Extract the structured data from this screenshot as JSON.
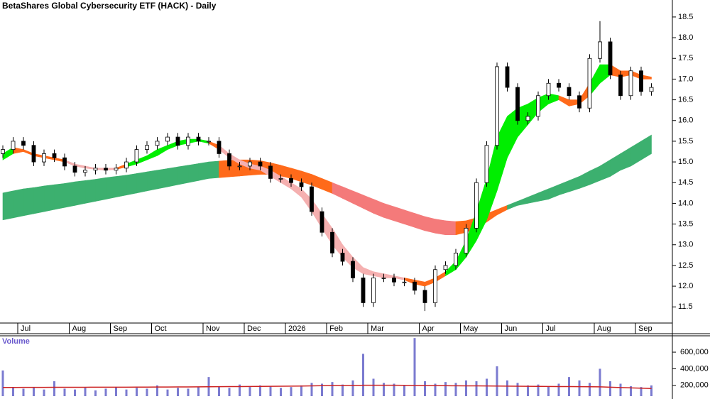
{
  "chart_data": [
    {
      "type": "candlestick",
      "title": "BetaShares Global Cybersecurity ETF (HACK) - Daily",
      "categories": [
        null,
        null,
        "Jul",
        null,
        null,
        null,
        null,
        "Aug",
        null,
        null,
        null,
        "Sep",
        null,
        null,
        null,
        "Oct",
        null,
        null,
        null,
        null,
        "Nov",
        null,
        null,
        null,
        "Dec",
        null,
        null,
        null,
        "2026",
        null,
        null,
        null,
        "Feb",
        null,
        null,
        null,
        "Mar",
        null,
        null,
        null,
        null,
        "Apr",
        null,
        null,
        null,
        "May",
        null,
        null,
        null,
        "Jun",
        null,
        null,
        null,
        "Jul",
        null,
        null,
        null,
        null,
        "Aug",
        null,
        null,
        null,
        "Sep",
        null
      ],
      "open": [
        15.2,
        15.3,
        15.5,
        15.4,
        15.0,
        15.2,
        15.1,
        14.9,
        14.75,
        14.8,
        14.85,
        14.8,
        14.85,
        15.0,
        15.3,
        15.4,
        15.5,
        15.6,
        15.4,
        15.6,
        15.5,
        15.5,
        15.2,
        14.9,
        14.9,
        15.0,
        14.9,
        14.6,
        14.6,
        14.5,
        14.4,
        13.8,
        13.3,
        12.8,
        12.6,
        12.2,
        11.6,
        12.2,
        12.2,
        12.1,
        12.1,
        11.9,
        11.6,
        12.4,
        12.5,
        12.8,
        13.4,
        14.5,
        15.4,
        17.3,
        16.8,
        16.0,
        16.1,
        16.6,
        16.9,
        16.8,
        16.6,
        16.3,
        17.5,
        17.9,
        17.1,
        16.6,
        17.2,
        16.7
      ],
      "high": [
        15.4,
        15.6,
        15.6,
        15.5,
        15.3,
        15.3,
        15.2,
        15.0,
        14.9,
        14.95,
        14.95,
        14.95,
        15.1,
        15.4,
        15.5,
        15.6,
        15.7,
        15.7,
        15.7,
        15.7,
        15.6,
        15.6,
        15.3,
        15.0,
        15.1,
        15.1,
        15.0,
        14.7,
        14.7,
        14.6,
        14.5,
        13.9,
        13.4,
        12.9,
        12.7,
        12.3,
        12.3,
        12.3,
        12.3,
        12.2,
        12.2,
        12.0,
        12.5,
        12.6,
        12.9,
        13.5,
        14.6,
        15.5,
        17.4,
        17.4,
        16.9,
        16.2,
        16.7,
        17.0,
        17.0,
        16.9,
        16.7,
        17.6,
        18.4,
        18.0,
        17.2,
        17.3,
        17.3,
        16.9
      ],
      "low": [
        15.1,
        15.2,
        15.3,
        14.9,
        14.9,
        15.0,
        14.8,
        14.65,
        14.65,
        14.7,
        14.7,
        14.7,
        14.75,
        14.9,
        15.2,
        15.3,
        15.4,
        15.3,
        15.3,
        15.4,
        15.4,
        15.1,
        14.8,
        14.8,
        14.8,
        14.8,
        14.5,
        14.5,
        14.4,
        14.3,
        13.7,
        13.2,
        12.7,
        12.5,
        12.1,
        11.5,
        11.5,
        12.1,
        12.0,
        12.0,
        11.8,
        11.4,
        11.5,
        12.3,
        12.4,
        12.7,
        13.3,
        14.4,
        15.3,
        16.7,
        15.9,
        15.9,
        16.0,
        16.5,
        16.7,
        16.5,
        16.2,
        16.2,
        17.4,
        17.0,
        16.5,
        16.5,
        16.6,
        16.6
      ],
      "close": [
        15.3,
        15.5,
        15.4,
        15.0,
        15.2,
        15.1,
        14.9,
        14.75,
        14.8,
        14.85,
        14.8,
        14.85,
        15.0,
        15.3,
        15.4,
        15.5,
        15.6,
        15.4,
        15.6,
        15.5,
        15.5,
        15.2,
        14.9,
        14.9,
        15.0,
        14.9,
        14.6,
        14.6,
        14.5,
        14.4,
        13.8,
        13.3,
        12.8,
        12.6,
        12.2,
        11.6,
        12.2,
        12.2,
        12.1,
        12.1,
        11.9,
        11.6,
        12.4,
        12.5,
        12.8,
        13.4,
        14.5,
        15.4,
        17.3,
        16.8,
        16.0,
        16.1,
        16.6,
        16.9,
        16.8,
        16.6,
        16.3,
        17.5,
        17.9,
        17.1,
        16.6,
        17.2,
        16.7,
        16.8
      ],
      "up_color": "#ffffff",
      "down_color": "#000000",
      "bands": [
        {
          "upper": [
            14.25,
            14.3,
            14.35,
            14.38,
            14.42,
            14.45,
            14.48,
            14.52,
            14.55,
            14.58,
            14.62,
            14.65,
            14.68,
            14.72,
            14.76,
            14.8,
            14.84,
            14.88,
            14.92,
            14.96,
            15.0,
            15.02,
            15.04,
            15.05,
            15.05,
            15.03,
            14.98,
            14.92,
            14.85,
            14.78,
            14.7,
            14.6,
            14.5,
            14.4,
            14.3,
            14.2,
            14.1,
            14.0,
            13.92,
            13.84,
            13.76,
            13.68,
            13.62,
            13.58,
            13.56,
            13.58,
            13.65,
            13.75,
            13.85,
            13.95,
            14.05,
            14.15,
            14.25,
            14.35,
            14.45,
            14.55,
            14.65,
            14.78,
            14.9,
            15.05,
            15.2,
            15.35,
            15.5,
            15.65
          ],
          "lower": [
            13.6,
            13.65,
            13.7,
            13.75,
            13.8,
            13.85,
            13.9,
            13.95,
            14.0,
            14.05,
            14.1,
            14.15,
            14.2,
            14.25,
            14.3,
            14.35,
            14.4,
            14.45,
            14.5,
            14.55,
            14.6,
            14.62,
            14.64,
            14.66,
            14.68,
            14.7,
            14.7,
            14.66,
            14.6,
            14.52,
            14.44,
            14.34,
            14.24,
            14.12,
            14.0,
            13.88,
            13.76,
            13.66,
            13.58,
            13.5,
            13.42,
            13.34,
            13.28,
            13.24,
            13.24,
            13.3,
            13.4,
            13.55,
            13.72,
            13.85,
            13.95,
            14.0,
            14.05,
            14.1,
            14.2,
            14.28,
            14.36,
            14.45,
            14.55,
            14.65,
            14.8,
            14.9,
            15.05,
            15.2
          ],
          "colors": [
            "#3cb06f",
            "#3cb06f",
            "#3cb06f",
            "#3cb06f",
            "#3cb06f",
            "#3cb06f",
            "#3cb06f",
            "#3cb06f",
            "#3cb06f",
            "#3cb06f",
            "#3cb06f",
            "#3cb06f",
            "#3cb06f",
            "#3cb06f",
            "#3cb06f",
            "#3cb06f",
            "#3cb06f",
            "#3cb06f",
            "#3cb06f",
            "#3cb06f",
            "#3cb06f",
            "#ff6a1a",
            "#ff6a1a",
            "#ff6a1a",
            "#ff6a1a",
            "#ff6a1a",
            "#ff6a1a",
            "#ff6a1a",
            "#ff6a1a",
            "#ff6a1a",
            "#ff6a1a",
            "#ff6a1a",
            "#f47a7a",
            "#f47a7a",
            "#f47a7a",
            "#f47a7a",
            "#f47a7a",
            "#f47a7a",
            "#f47a7a",
            "#f47a7a",
            "#f47a7a",
            "#f47a7a",
            "#f47a7a",
            "#f47a7a",
            "#ff6a1a",
            "#ff6a1a",
            "#ff6a1a",
            "#ff6a1a",
            "#ff6a1a",
            "#3cb06f",
            "#3cb06f",
            "#3cb06f",
            "#3cb06f",
            "#3cb06f",
            "#3cb06f",
            "#3cb06f",
            "#3cb06f",
            "#3cb06f",
            "#3cb06f",
            "#3cb06f",
            "#3cb06f",
            "#3cb06f",
            "#3cb06f"
          ]
        },
        {
          "upper": [
            15.2,
            15.35,
            15.3,
            15.2,
            15.15,
            15.1,
            15.05,
            14.95,
            14.9,
            14.85,
            14.85,
            14.85,
            14.95,
            15.05,
            15.15,
            15.3,
            15.4,
            15.5,
            15.55,
            15.55,
            15.5,
            15.4,
            15.2,
            15.05,
            14.95,
            14.9,
            14.8,
            14.65,
            14.5,
            14.35,
            14.1,
            13.75,
            13.4,
            13.0,
            12.7,
            12.45,
            12.35,
            12.3,
            12.25,
            12.2,
            12.15,
            12.1,
            12.2,
            12.35,
            12.6,
            13.1,
            13.8,
            14.6,
            15.6,
            16.1,
            16.3,
            16.4,
            16.55,
            16.65,
            16.6,
            16.5,
            16.5,
            16.9,
            17.35,
            17.35,
            17.2,
            17.2,
            17.1,
            17.05
          ],
          "lower": [
            15.05,
            15.2,
            15.25,
            15.15,
            15.1,
            15.05,
            15.0,
            14.9,
            14.85,
            14.82,
            14.8,
            14.82,
            14.88,
            14.95,
            15.05,
            15.15,
            15.3,
            15.4,
            15.45,
            15.5,
            15.45,
            15.3,
            15.1,
            14.95,
            14.85,
            14.8,
            14.65,
            14.5,
            14.35,
            14.15,
            13.8,
            13.4,
            13.0,
            12.7,
            12.45,
            12.3,
            12.25,
            12.2,
            12.2,
            12.15,
            12.05,
            12.0,
            12.1,
            12.25,
            12.4,
            12.7,
            13.1,
            13.6,
            14.3,
            15.1,
            15.6,
            15.9,
            16.2,
            16.4,
            16.5,
            16.35,
            16.4,
            16.6,
            16.9,
            17.1,
            17.05,
            17.1,
            17.0,
            17.0
          ],
          "colors": [
            "#00ee00",
            "#ff6a1a",
            "#ff6a1a",
            "#ff6a1a",
            "#ff6a1a",
            "#ff6a1a",
            "#f5b0b0",
            "#f5b0b0",
            "#f5b0b0",
            "#f5b0b0",
            "#f5b0b0",
            "#ff6a1a",
            "#00ee00",
            "#00ee00",
            "#00ee00",
            "#00ee00",
            "#00ee00",
            "#00ee00",
            "#00ee00",
            "#00ee00",
            "#ff6a1a",
            "#f5b0b0",
            "#f5b0b0",
            "#f5b0b0",
            "#f5b0b0",
            "#f5b0b0",
            "#f5b0b0",
            "#f5b0b0",
            "#f5b0b0",
            "#f5b0b0",
            "#f5b0b0",
            "#f5b0b0",
            "#f5b0b0",
            "#f5b0b0",
            "#f5b0b0",
            "#f5b0b0",
            "#f5b0b0",
            "#f5b0b0",
            "#f5b0b0",
            "#ff6a1a",
            "#ff6a1a",
            "#ff6a1a",
            "#ff6a1a",
            "#00ee00",
            "#00ee00",
            "#00ee00",
            "#00ee00",
            "#00ee00",
            "#00ee00",
            "#00ee00",
            "#00ee00",
            "#00ee00",
            "#00ee00",
            "#00ee00",
            "#ff6a1a",
            "#ff6a1a",
            "#ff6a1a",
            "#00ee00",
            "#00ee00",
            "#ff6a1a",
            "#ff6a1a",
            "#ff6a1a",
            "#ff6a1a"
          ]
        }
      ],
      "ylim": [
        11.11,
        18.91
      ],
      "yticks": [
        11.5,
        {
          "value": 12,
          "label": "12.0"
        },
        12.5,
        {
          "value": 13,
          "label": "13.0"
        },
        13.5,
        {
          "value": 14,
          "label": "14.0"
        },
        14.5,
        {
          "value": 15,
          "label": "15.0"
        },
        15.5,
        {
          "value": 16,
          "label": "16.0"
        },
        16.5,
        {
          "value": 17,
          "label": "17.0"
        },
        17.5,
        {
          "value": 18,
          "label": "18.0"
        },
        18.5
      ]
    },
    {
      "type": "bar",
      "title": "Volume",
      "values": [
        380000,
        180000,
        160000,
        170000,
        150000,
        250000,
        160000,
        150000,
        170000,
        140000,
        160000,
        180000,
        150000,
        170000,
        160000,
        200000,
        150000,
        170000,
        160000,
        180000,
        300000,
        190000,
        170000,
        210000,
        180000,
        200000,
        190000,
        170000,
        180000,
        200000,
        230000,
        220000,
        240000,
        210000,
        260000,
        580000,
        280000,
        230000,
        220000,
        200000,
        770000,
        250000,
        220000,
        240000,
        230000,
        260000,
        250000,
        280000,
        430000,
        260000,
        230000,
        200000,
        210000,
        190000,
        220000,
        300000,
        260000,
        230000,
        400000,
        250000,
        220000,
        190000,
        180000,
        200000
      ],
      "color": "#7b7bd0",
      "average": {
        "color": "#cc2222",
        "values": [
          175000,
          175000,
          176000,
          176000,
          176000,
          177000,
          177000,
          177000,
          177000,
          178000,
          178000,
          178000,
          178000,
          179000,
          179000,
          180000,
          180000,
          181000,
          181000,
          182000,
          183000,
          184000,
          185000,
          186000,
          187000,
          188000,
          189000,
          190000,
          191000,
          192000,
          194000,
          196000,
          198000,
          199000,
          200000,
          201000,
          202000,
          202000,
          201000,
          200000,
          199000,
          198000,
          197000,
          196000,
          195000,
          194000,
          194000,
          193000,
          192000,
          191000,
          190000,
          189000,
          188000,
          187000,
          186000,
          185000,
          184000,
          183000,
          182000,
          178000,
          174000,
          170000,
          166000,
          162000
        ]
      },
      "ylim": [
        70000,
        780000
      ],
      "yticks": [
        {
          "value": 200000,
          "label": "200,000"
        },
        {
          "value": 400000,
          "label": "400,000"
        },
        {
          "value": 600000,
          "label": "600,000"
        }
      ]
    }
  ]
}
